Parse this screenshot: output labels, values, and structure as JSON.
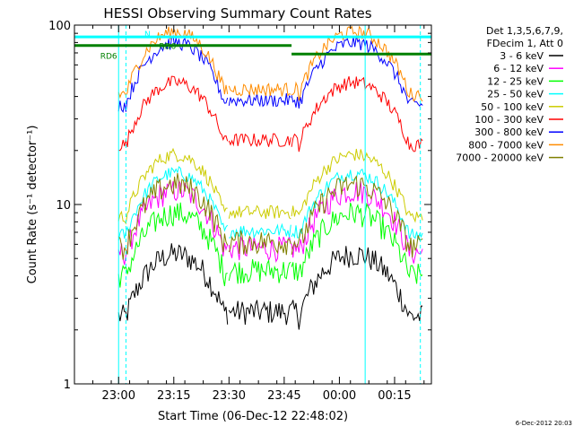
{
  "chart_data": {
    "type": "line",
    "title": "HESSI Observing Summary Count Rates",
    "xlabel": "Start Time (06-Dec-12 22:48:02)",
    "ylabel": "Count Rate (s⁻¹ detector⁻¹)",
    "y_scale": "log",
    "ylim": [
      1,
      100
    ],
    "xlim": [
      "22:48",
      "00:25"
    ],
    "x_tick_labels": [
      "23:00",
      "23:15",
      "23:30",
      "23:45",
      "00:00",
      "00:15"
    ],
    "y_tick_labels": [
      "1",
      "10",
      "100"
    ],
    "timestamp": "6-Dec-2012 20:03",
    "legend_header": [
      "Det 1,3,5,6,7,9,",
      "FDecim 1, Att 0"
    ],
    "legend_position": "right",
    "annotations": [
      {
        "text": "N",
        "color": "#00ffff"
      },
      {
        "text": "RD6",
        "color": "#008000"
      },
      {
        "text": "RD6",
        "color": "#008000"
      }
    ],
    "series": [
      {
        "name": "3 - 6 keV",
        "color": "#000000",
        "peak": 5.3
      },
      {
        "name": "6 - 12 keV",
        "color": "#ff00ff",
        "peak": 12.0
      },
      {
        "name": "12 - 25 keV",
        "color": "#00ff00",
        "peak": 9.0
      },
      {
        "name": "25 - 50 keV",
        "color": "#00ffff",
        "peak": 15.0
      },
      {
        "name": "50 - 100 keV",
        "color": "#cccc00",
        "peak": 19.0
      },
      {
        "name": "100 - 300 keV",
        "color": "#ff0000",
        "peak": 48.0
      },
      {
        "name": "300 - 800 keV",
        "color": "#0000ff",
        "peak": 80.0
      },
      {
        "name": "800 - 7000 keV",
        "color": "#ff8c00",
        "peak": 92.0
      },
      {
        "name": "7000 - 20000 keV",
        "color": "#808000",
        "peak": 13.0
      }
    ]
  }
}
